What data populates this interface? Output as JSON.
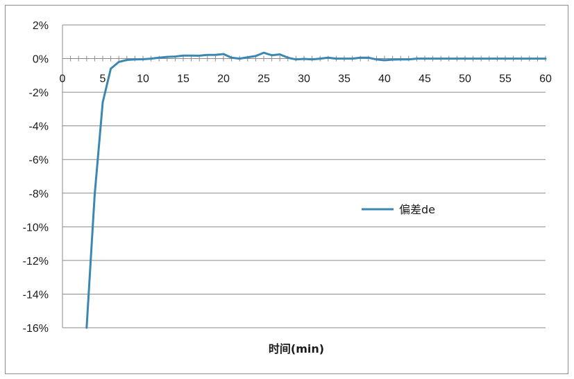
{
  "chart_data": {
    "type": "line",
    "xlabel": "时间(min)",
    "ylabel": "",
    "xlim": [
      0,
      60
    ],
    "ylim": [
      -16,
      2
    ],
    "x_ticks": [
      0,
      5,
      10,
      15,
      20,
      25,
      30,
      35,
      40,
      45,
      50,
      55,
      60
    ],
    "y_ticks": [
      2,
      0,
      -2,
      -4,
      -6,
      -8,
      -10,
      -12,
      -14,
      -16
    ],
    "y_tick_labels": [
      "2%",
      "0%",
      "-2%",
      "-4%",
      "-6%",
      "-8%",
      "-10%",
      "-12%",
      "-14%",
      "-16%"
    ],
    "grid": "horizontal",
    "legend": {
      "position": "right-middle"
    },
    "colors": {
      "series": "#3b87b2",
      "grid": "#8a8a8a",
      "axis": "#8a8a8a"
    },
    "series": [
      {
        "name": "偏差de",
        "x": [
          3,
          4,
          5,
          6,
          7,
          8,
          9,
          10,
          11,
          12,
          13,
          14,
          15,
          16,
          17,
          18,
          19,
          20,
          21,
          22,
          23,
          24,
          25,
          26,
          27,
          28,
          29,
          30,
          31,
          32,
          33,
          34,
          35,
          36,
          37,
          38,
          39,
          40,
          41,
          42,
          43,
          44,
          45,
          46,
          47,
          48,
          49,
          50,
          51,
          52,
          53,
          54,
          55,
          56,
          57,
          58,
          59,
          60
        ],
        "values": [
          -16,
          -8.1,
          -2.6,
          -0.6,
          -0.2,
          -0.08,
          -0.05,
          -0.04,
          0,
          0.05,
          0.1,
          0.12,
          0.18,
          0.18,
          0.17,
          0.22,
          0.22,
          0.27,
          0.05,
          0.0,
          0.08,
          0.15,
          0.35,
          0.2,
          0.25,
          0.05,
          -0.05,
          -0.02,
          -0.05,
          0.0,
          0.05,
          0.0,
          0.0,
          0.0,
          0.05,
          0.05,
          -0.05,
          -0.1,
          -0.06,
          -0.05,
          -0.05,
          0.0,
          0.0,
          0.0,
          0.0,
          0.0,
          0.0,
          0.0,
          0.0,
          0.0,
          0.0,
          0.0,
          0.0,
          0.0,
          0.0,
          0.0,
          0.0,
          0.0
        ]
      }
    ]
  }
}
